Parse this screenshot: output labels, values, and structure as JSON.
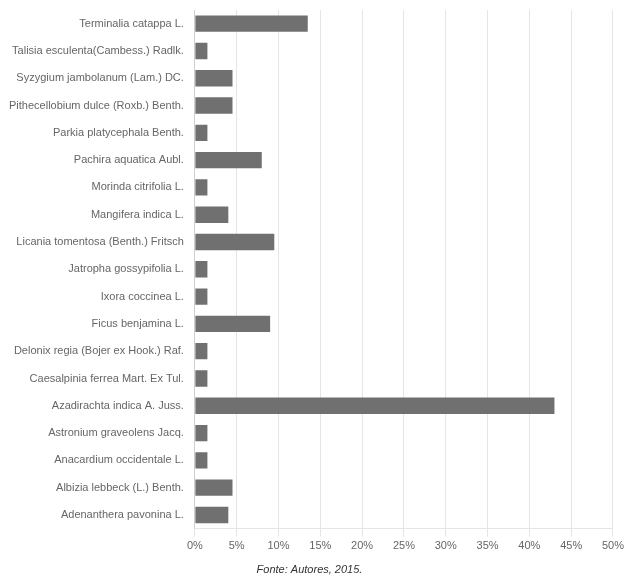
{
  "chart_data": {
    "type": "bar",
    "orientation": "horizontal",
    "categories": [
      "Terminalia catappa L.",
      "Talisia esculenta(Cambess.) Radlk.",
      "Syzygium jambolanum (Lam.) DC.",
      "Pithecellobium dulce (Roxb.) Benth.",
      "Parkia platycephala Benth.",
      "Pachira aquatica Aubl.",
      "Morinda citrifolia L.",
      "Mangifera indica L.",
      "Licania tomentosa (Benth.) Fritsch",
      "Jatropha gossypifolia L.",
      "Ixora coccinea L.",
      "Ficus benjamina L.",
      "Delonix regia (Bojer ex Hook.) Raf.",
      "Caesalpinia ferrea Mart. Ex Tul.",
      "Azadirachta indica A. Juss.",
      "Astronium graveolens Jacq.",
      "Anacardium occidentale L.",
      "Albizia lebbeck (L.) Benth.",
      "Adenanthera pavonina L."
    ],
    "values": [
      13.5,
      1.5,
      4.5,
      4.5,
      1.5,
      8.0,
      1.5,
      4.0,
      9.5,
      1.5,
      1.5,
      9.0,
      1.5,
      1.5,
      43.0,
      1.5,
      1.5,
      4.5,
      4.0
    ],
    "color": "#707070",
    "xlim": [
      0,
      50
    ],
    "xticks": [
      {
        "value": 0,
        "label": "0%"
      },
      {
        "value": 5,
        "label": "5%"
      },
      {
        "value": 10,
        "label": "10%"
      },
      {
        "value": 15,
        "label": "15%"
      },
      {
        "value": 20,
        "label": "20%"
      },
      {
        "value": 25,
        "label": "25%"
      },
      {
        "value": 30,
        "label": "30%"
      },
      {
        "value": 35,
        "label": "35%"
      },
      {
        "value": 40,
        "label": "40%"
      },
      {
        "value": 45,
        "label": "45%"
      },
      {
        "value": 50,
        "label": "50%"
      }
    ],
    "grid": true,
    "annotations": [
      "Fonte: Autores, 2015."
    ]
  }
}
